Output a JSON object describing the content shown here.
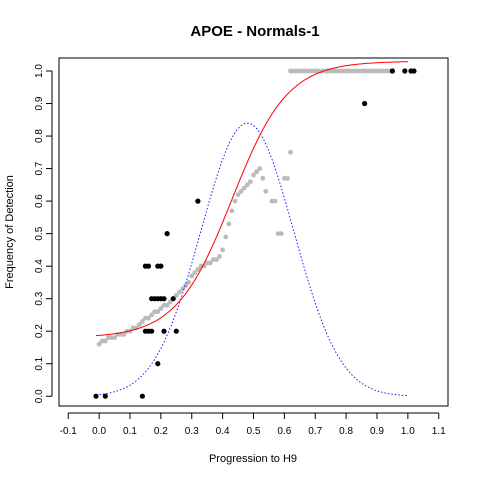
{
  "chart_data": {
    "type": "scatter",
    "title": "APOE - Normals-1",
    "xlabel": "Progression to H9",
    "ylabel": "Frequency of Detection",
    "xlim": [
      -0.13,
      1.13
    ],
    "ylim": [
      -0.03,
      1.04
    ],
    "xticks": [
      -0.1,
      0.0,
      0.1,
      0.2,
      0.3,
      0.4,
      0.5,
      0.6,
      0.7,
      0.8,
      0.9,
      1.0,
      1.1
    ],
    "xtick_labels": [
      "-0.1",
      "0.0",
      "0.1",
      "0.2",
      "0.3",
      "0.4",
      "0.5",
      "0.6",
      "0.7",
      "0.8",
      "0.9",
      "1.0",
      "1.1"
    ],
    "yticks": [
      0.0,
      0.1,
      0.2,
      0.3,
      0.4,
      0.5,
      0.6,
      0.7,
      0.8,
      0.9,
      1.0
    ],
    "ytick_labels": [
      "0.0",
      "0.1",
      "0.2",
      "0.3",
      "0.4",
      "0.5",
      "0.6",
      "0.7",
      "0.8",
      "0.9",
      "1.0"
    ],
    "grid": false,
    "colors": {
      "observed": "#000000",
      "smoothed": "#bbbbbb",
      "fit_curve": "#ff0000",
      "density_curve": "#0000ff"
    },
    "observed_points": [
      [
        -0.01,
        0.0
      ],
      [
        0.02,
        0.0
      ],
      [
        0.14,
        0.0
      ],
      [
        0.19,
        0.1
      ],
      [
        0.15,
        0.2
      ],
      [
        0.16,
        0.2
      ],
      [
        0.17,
        0.2
      ],
      [
        0.21,
        0.2
      ],
      [
        0.25,
        0.2
      ],
      [
        0.17,
        0.3
      ],
      [
        0.18,
        0.3
      ],
      [
        0.19,
        0.3
      ],
      [
        0.2,
        0.3
      ],
      [
        0.21,
        0.3
      ],
      [
        0.24,
        0.3
      ],
      [
        0.15,
        0.4
      ],
      [
        0.16,
        0.4
      ],
      [
        0.19,
        0.4
      ],
      [
        0.2,
        0.4
      ],
      [
        0.22,
        0.5
      ],
      [
        0.32,
        0.6
      ],
      [
        0.86,
        0.9
      ],
      [
        0.95,
        1.0
      ],
      [
        0.99,
        1.0
      ],
      [
        1.01,
        1.0
      ],
      [
        1.02,
        1.0
      ]
    ],
    "smoothed_points": [
      [
        0.0,
        0.16
      ],
      [
        0.01,
        0.17
      ],
      [
        0.02,
        0.17
      ],
      [
        0.03,
        0.18
      ],
      [
        0.04,
        0.18
      ],
      [
        0.05,
        0.18
      ],
      [
        0.06,
        0.19
      ],
      [
        0.07,
        0.19
      ],
      [
        0.08,
        0.19
      ],
      [
        0.09,
        0.2
      ],
      [
        0.1,
        0.2
      ],
      [
        0.11,
        0.21
      ],
      [
        0.12,
        0.21
      ],
      [
        0.13,
        0.22
      ],
      [
        0.14,
        0.23
      ],
      [
        0.15,
        0.24
      ],
      [
        0.16,
        0.24
      ],
      [
        0.17,
        0.25
      ],
      [
        0.18,
        0.26
      ],
      [
        0.19,
        0.26
      ],
      [
        0.2,
        0.27
      ],
      [
        0.21,
        0.28
      ],
      [
        0.22,
        0.28
      ],
      [
        0.23,
        0.29
      ],
      [
        0.24,
        0.3
      ],
      [
        0.25,
        0.31
      ],
      [
        0.26,
        0.32
      ],
      [
        0.27,
        0.33
      ],
      [
        0.28,
        0.34
      ],
      [
        0.29,
        0.35
      ],
      [
        0.3,
        0.37
      ],
      [
        0.31,
        0.38
      ],
      [
        0.32,
        0.39
      ],
      [
        0.33,
        0.4
      ],
      [
        0.34,
        0.4
      ],
      [
        0.35,
        0.41
      ],
      [
        0.36,
        0.41
      ],
      [
        0.37,
        0.42
      ],
      [
        0.38,
        0.42
      ],
      [
        0.39,
        0.43
      ],
      [
        0.4,
        0.45
      ],
      [
        0.41,
        0.49
      ],
      [
        0.42,
        0.53
      ],
      [
        0.43,
        0.57
      ],
      [
        0.44,
        0.6
      ],
      [
        0.45,
        0.62
      ],
      [
        0.46,
        0.63
      ],
      [
        0.47,
        0.64
      ],
      [
        0.48,
        0.65
      ],
      [
        0.49,
        0.66
      ],
      [
        0.5,
        0.68
      ],
      [
        0.51,
        0.69
      ],
      [
        0.52,
        0.7
      ],
      [
        0.53,
        0.67
      ],
      [
        0.54,
        0.63
      ],
      [
        0.56,
        0.6
      ],
      [
        0.57,
        0.6
      ],
      [
        0.58,
        0.5
      ],
      [
        0.59,
        0.5
      ],
      [
        0.6,
        0.67
      ],
      [
        0.61,
        0.67
      ],
      [
        0.62,
        0.75
      ],
      [
        0.62,
        1.0
      ],
      [
        0.65,
        1.0
      ],
      [
        0.68,
        1.0
      ],
      [
        0.71,
        1.0
      ],
      [
        0.74,
        1.0
      ],
      [
        0.77,
        1.0
      ],
      [
        0.8,
        1.0
      ],
      [
        0.83,
        1.0
      ],
      [
        0.86,
        1.0
      ],
      [
        0.89,
        1.0
      ],
      [
        0.92,
        1.0
      ],
      [
        0.95,
        1.0
      ]
    ],
    "fit_curve": {
      "type": "logistic",
      "lower": 0.18,
      "upper": 1.03,
      "midpoint": 0.43,
      "scale": 0.09,
      "x_range": [
        -0.01,
        1.0
      ]
    },
    "density_curve": {
      "type": "gaussian",
      "mean": 0.48,
      "sd": 0.15,
      "peak": 0.84,
      "x_range": [
        -0.01,
        1.0
      ]
    }
  }
}
